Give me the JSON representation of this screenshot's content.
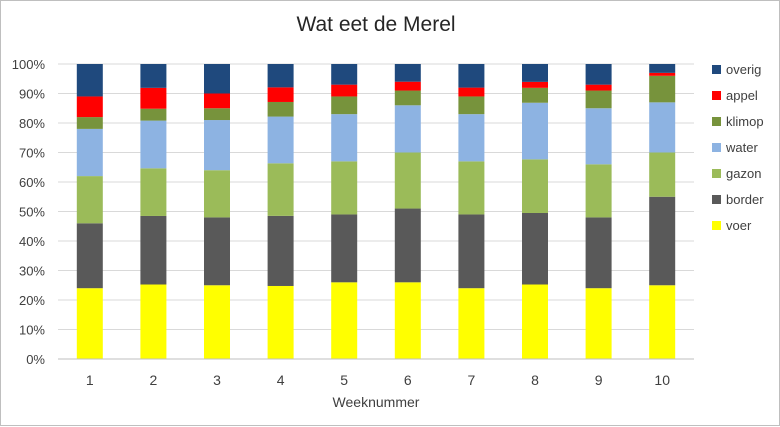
{
  "chart_data": {
    "type": "bar",
    "stacked": true,
    "percent": true,
    "title": "Wat eet de Merel",
    "xlabel": "Weeknummer",
    "ylabel": "",
    "ylim": [
      0,
      100
    ],
    "yticks": [
      "0%",
      "10%",
      "20%",
      "30%",
      "40%",
      "50%",
      "60%",
      "70%",
      "80%",
      "90%",
      "100%"
    ],
    "categories": [
      "1",
      "2",
      "3",
      "4",
      "5",
      "6",
      "7",
      "8",
      "9",
      "10"
    ],
    "legend_position": "right",
    "grid": true,
    "series": [
      {
        "name": "voer",
        "color": "#ffff00",
        "values": [
          24,
          25,
          25,
          25,
          26,
          26,
          24,
          25,
          24,
          25
        ]
      },
      {
        "name": "border",
        "color": "#595959",
        "values": [
          22,
          23,
          23,
          24,
          23,
          25,
          25,
          24,
          24,
          30
        ]
      },
      {
        "name": "gazon",
        "color": "#9bbb59",
        "values": [
          16,
          16,
          16,
          18,
          18,
          19,
          18,
          18,
          18,
          15
        ]
      },
      {
        "name": "water",
        "color": "#8db3e2",
        "values": [
          16,
          16,
          17,
          16,
          16,
          16,
          16,
          19,
          19,
          17
        ]
      },
      {
        "name": "klimop",
        "color": "#77933c",
        "values": [
          4,
          4,
          4,
          5,
          6,
          5,
          6,
          5,
          6,
          9
        ]
      },
      {
        "name": "appel",
        "color": "#ff0000",
        "values": [
          7,
          7,
          5,
          5,
          4,
          3,
          3,
          2,
          2,
          1
        ]
      },
      {
        "name": "overig",
        "color": "#1f497d",
        "values": [
          11,
          8,
          10,
          8,
          7,
          6,
          8,
          6,
          7,
          3
        ]
      }
    ]
  }
}
